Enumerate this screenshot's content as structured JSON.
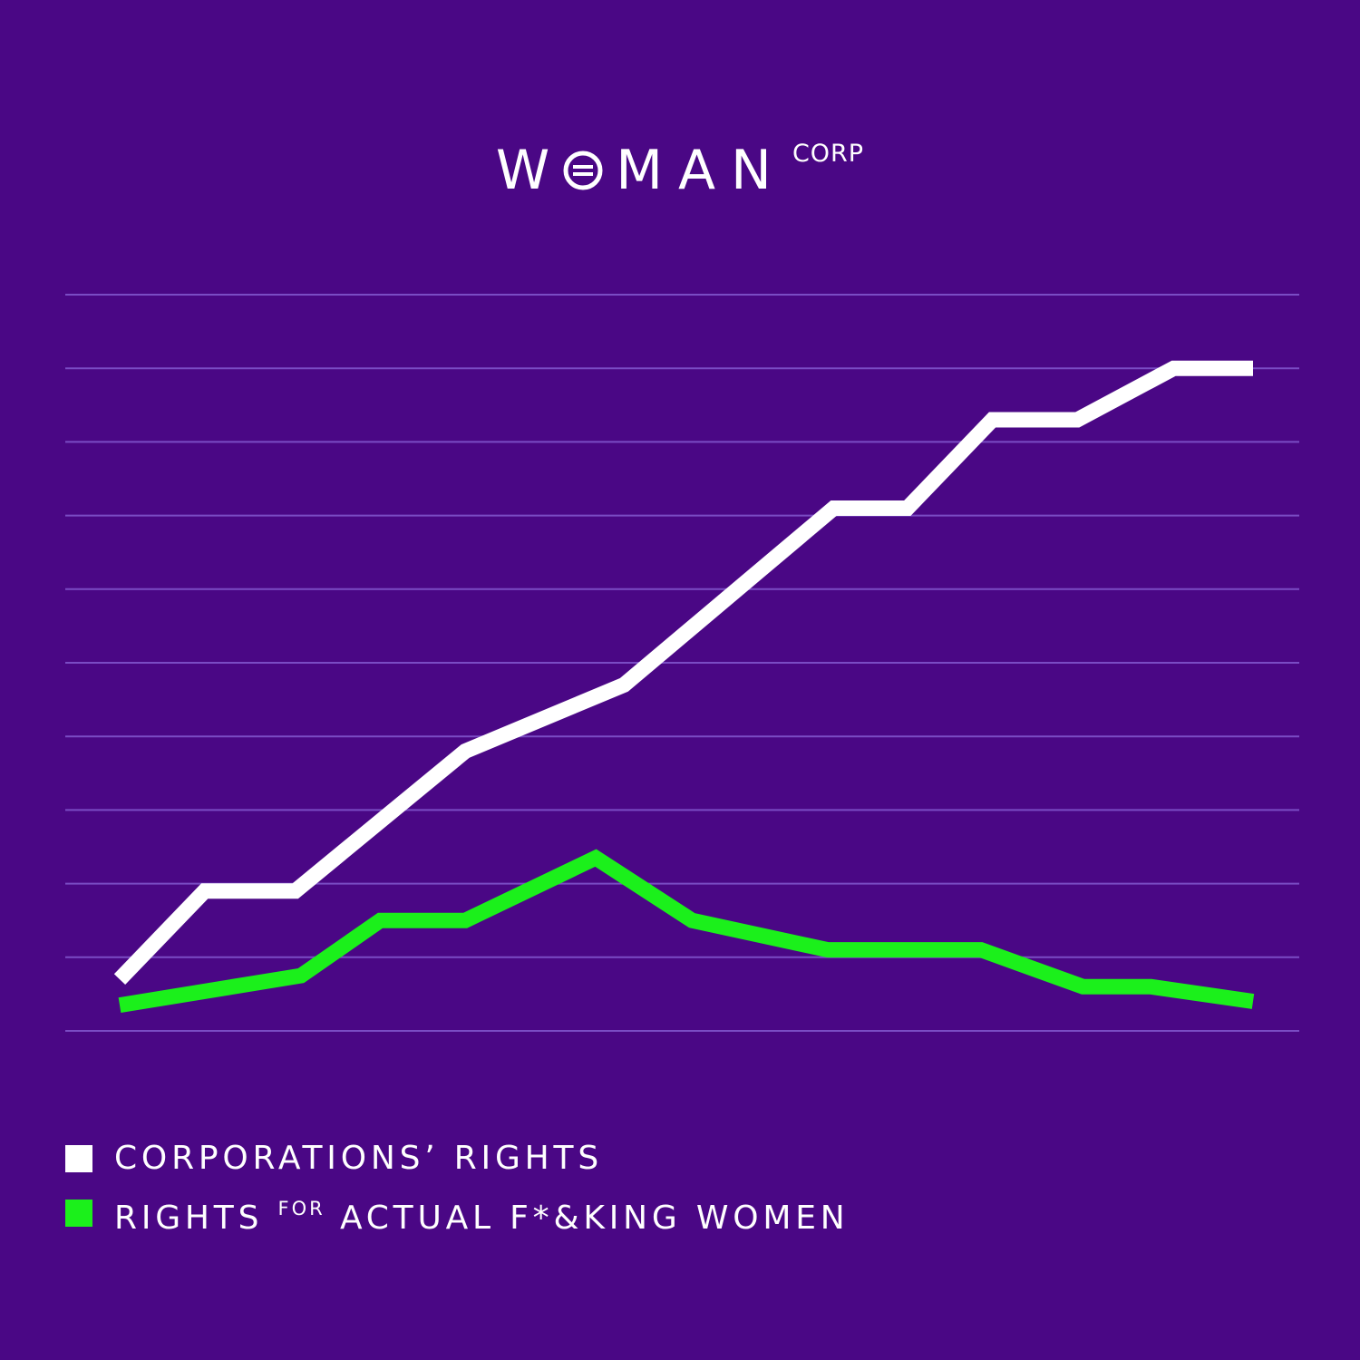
{
  "logo": {
    "word_before": "W",
    "word_after": "MAN",
    "sup": "CORP"
  },
  "colors": {
    "background": "#4a0785",
    "gridline": "#7a4cc4",
    "corporations": "#ffffff",
    "women": "#1bf01b"
  },
  "legend": [
    {
      "text": "CORPORATIONS’ RIGHTS"
    },
    {
      "text_before": "RIGHTS",
      "sup": "FOR",
      "text_after": "ACTUAL F*&KING WOMEN"
    }
  ],
  "chart_data": {
    "type": "line",
    "title": "",
    "xlabel": "",
    "ylabel": "",
    "grid": true,
    "gridline_count": 11,
    "xlim": [
      0,
      100
    ],
    "ylim": [
      0,
      10
    ],
    "legend_position": "bottom-left",
    "series": [
      {
        "name": "CORPORATIONS’ RIGHTS",
        "color": "#ffffff",
        "points": [
          [
            0,
            0.7
          ],
          [
            7.5,
            1.9
          ],
          [
            15.5,
            1.9
          ],
          [
            30.5,
            3.8
          ],
          [
            44.5,
            4.7
          ],
          [
            63,
            7.1
          ],
          [
            69.5,
            7.1
          ],
          [
            77,
            8.3
          ],
          [
            84.5,
            8.3
          ],
          [
            93,
            9.0
          ],
          [
            100,
            9.0
          ]
        ]
      },
      {
        "name": "RIGHTS FOR ACTUAL F*&KING WOMEN",
        "color": "#1bf01b",
        "points": [
          [
            0,
            0.35
          ],
          [
            16,
            0.75
          ],
          [
            23,
            1.5
          ],
          [
            30.5,
            1.5
          ],
          [
            42,
            2.35
          ],
          [
            50.5,
            1.5
          ],
          [
            62.5,
            1.1
          ],
          [
            76,
            1.1
          ],
          [
            85,
            0.6
          ],
          [
            91,
            0.6
          ],
          [
            100,
            0.4
          ]
        ]
      }
    ]
  }
}
